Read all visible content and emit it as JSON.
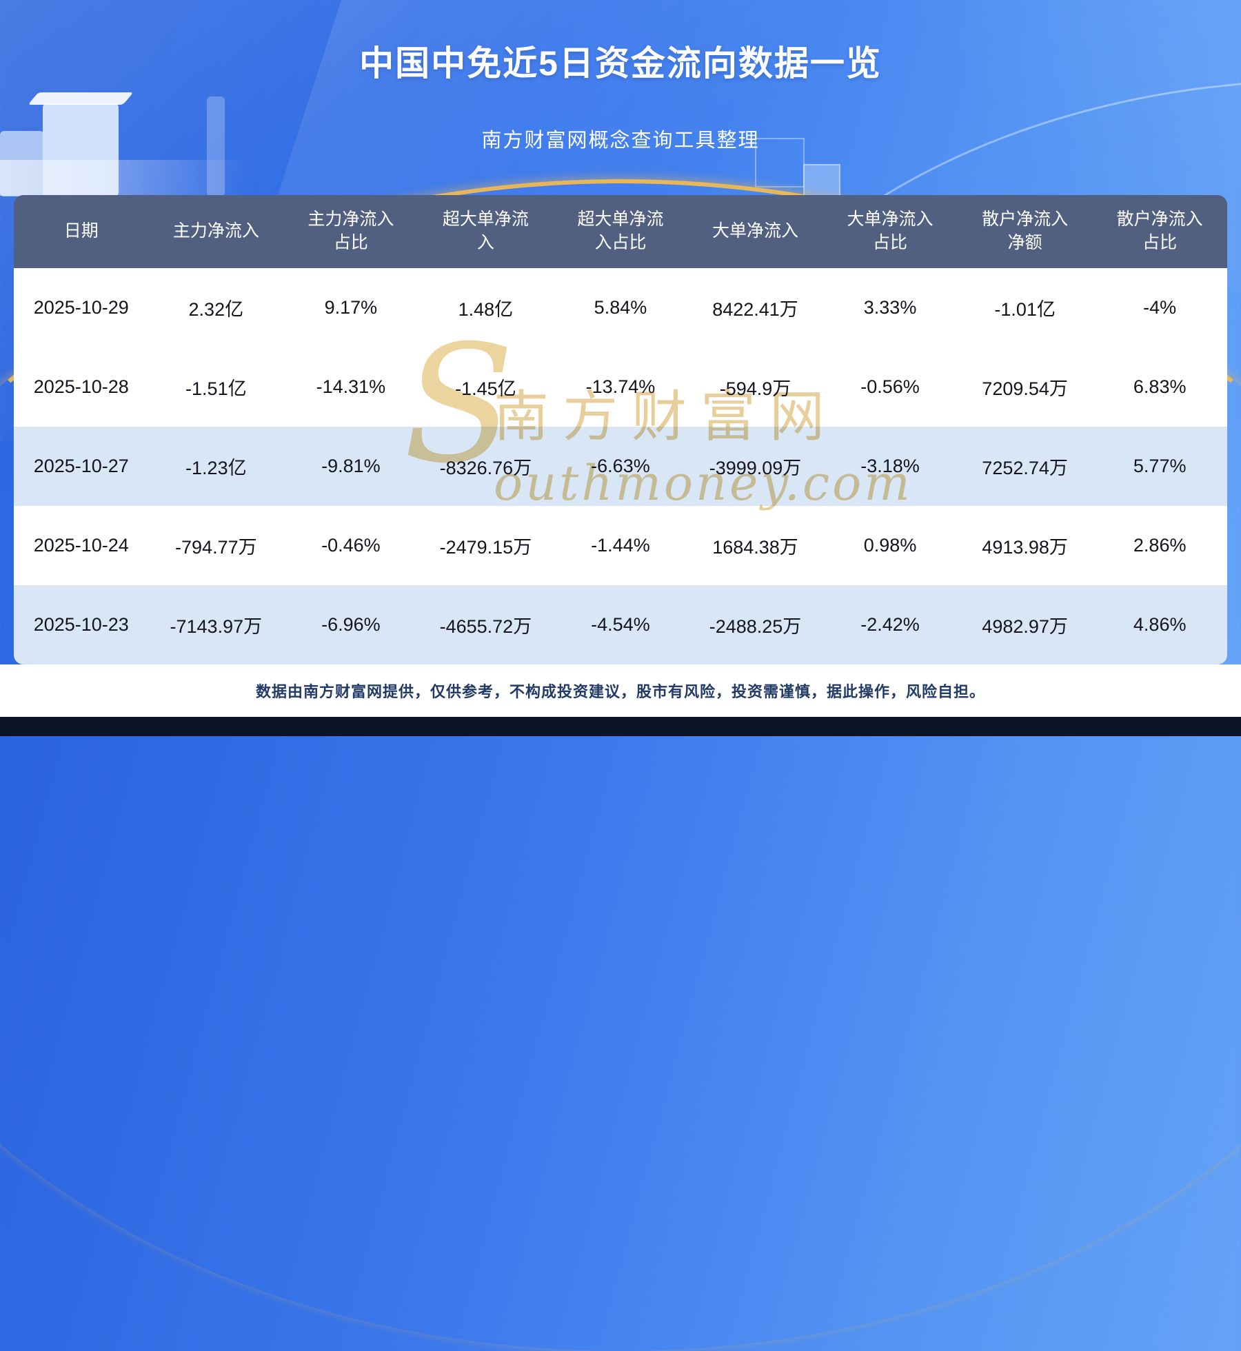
{
  "header": {
    "title": "中国中免近5日资金流向数据一览",
    "subtitle": "南方财富网概念查询工具整理"
  },
  "chart_data": {
    "type": "table",
    "title": "中国中免近5日资金流向数据一览",
    "columns": [
      "日期",
      "主力净流入",
      "主力净流入占比",
      "超大单净流入",
      "超大单净流入占比",
      "大单净流入",
      "大单净流入占比",
      "散户净流入净额",
      "散户净流入占比"
    ],
    "rows": [
      [
        "2025-10-29",
        "2.32亿",
        "9.17%",
        "1.48亿",
        "5.84%",
        "8422.41万",
        "3.33%",
        "-1.01亿",
        "-4%"
      ],
      [
        "2025-10-28",
        "-1.51亿",
        "-14.31%",
        "-1.45亿",
        "-13.74%",
        "-594.9万",
        "-0.56%",
        "7209.54万",
        "6.83%"
      ],
      [
        "2025-10-27",
        "-1.23亿",
        "-9.81%",
        "-8326.76万",
        "-6.63%",
        "-3999.09万",
        "-3.18%",
        "7252.74万",
        "5.77%"
      ],
      [
        "2025-10-24",
        "-794.77万",
        "-0.46%",
        "-2479.15万",
        "-1.44%",
        "1684.38万",
        "0.98%",
        "4913.98万",
        "2.86%"
      ],
      [
        "2025-10-23",
        "-7143.97万",
        "-6.96%",
        "-4655.72万",
        "-4.54%",
        "-2488.25万",
        "-2.42%",
        "4982.97万",
        "4.86%"
      ]
    ]
  },
  "watermark": {
    "s": "S",
    "cn": "南方财富网",
    "en": "outhmoney.com"
  },
  "footer": {
    "disclaimer": "数据由南方财富网提供，仅供参考，不构成投资建议，股市有风险，投资需谨慎，据此操作，风险自担。"
  },
  "colors": {
    "background_blue": "#3b78ec",
    "accent_gold": "#eeb84e",
    "table_header_bg": "#515f80",
    "row_alt_bg": "#d9e6f6",
    "footer_text": "#223a66",
    "bottom_bar": "#0b1424"
  }
}
